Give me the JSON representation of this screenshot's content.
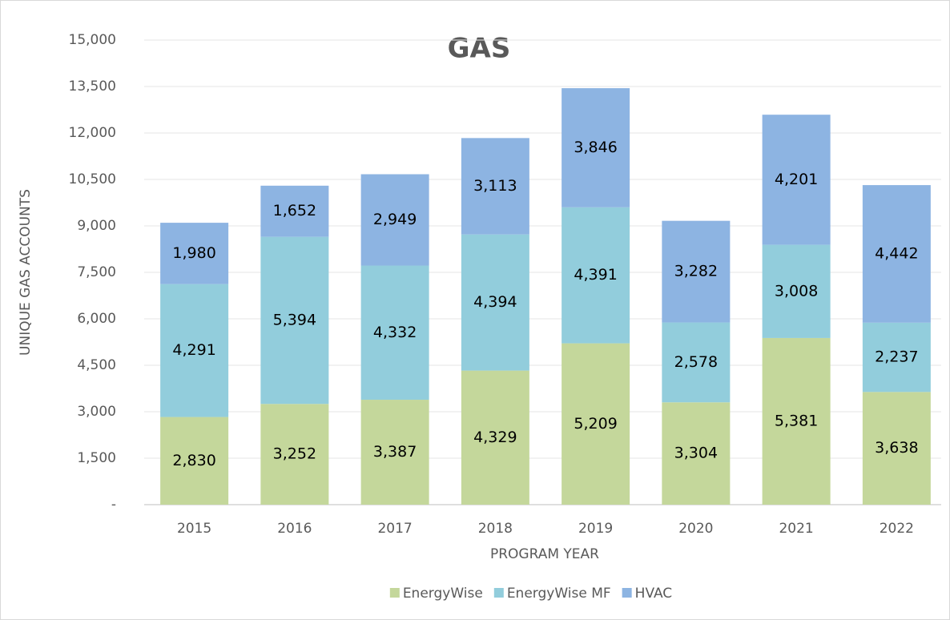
{
  "chart_data": {
    "type": "stacked_bar",
    "title": "GAS",
    "xlabel": "PROGRAM YEAR",
    "ylabel": "UNIQUE GAS ACCOUNTS",
    "categories": [
      "2015",
      "2016",
      "2017",
      "2018",
      "2019",
      "2020",
      "2021",
      "2022"
    ],
    "series": [
      {
        "name": "EnergyWise",
        "color": "#c4d79b",
        "values": [
          2830,
          3252,
          3387,
          4329,
          5209,
          3304,
          5381,
          3638
        ],
        "value_labels": [
          "2,830",
          "3,252",
          "3,387",
          "4,329",
          "5,209",
          "3,304",
          "5,381",
          "3,638"
        ]
      },
      {
        "name": "EnergyWise MF",
        "color": "#92cddc",
        "values": [
          4291,
          5394,
          4332,
          4394,
          4391,
          2578,
          3008,
          2237
        ],
        "value_labels": [
          "4,291",
          "5,394",
          "4,332",
          "4,394",
          "4,391",
          "2,578",
          "3,008",
          "2,237"
        ]
      },
      {
        "name": "HVAC",
        "color": "#8db4e2",
        "values": [
          1980,
          1652,
          2949,
          3113,
          3846,
          3282,
          4201,
          4442
        ],
        "value_labels": [
          "1,980",
          "1,652",
          "2,949",
          "3,113",
          "3,846",
          "3,282",
          "4,201",
          "4,442"
        ]
      }
    ],
    "ylim": [
      0,
      15000
    ],
    "yticks": [
      {
        "value": 0,
        "label": "-"
      },
      {
        "value": 1500,
        "label": "1,500"
      },
      {
        "value": 3000,
        "label": "3,000"
      },
      {
        "value": 4500,
        "label": "4,500"
      },
      {
        "value": 6000,
        "label": "6,000"
      },
      {
        "value": 7500,
        "label": "7,500"
      },
      {
        "value": 9000,
        "label": "9,000"
      },
      {
        "value": 10500,
        "label": "10,500"
      },
      {
        "value": 12000,
        "label": "12,000"
      },
      {
        "value": 13500,
        "label": "13,500"
      },
      {
        "value": 15000,
        "label": "15,000"
      }
    ],
    "grid": true,
    "legend": "bottom"
  }
}
